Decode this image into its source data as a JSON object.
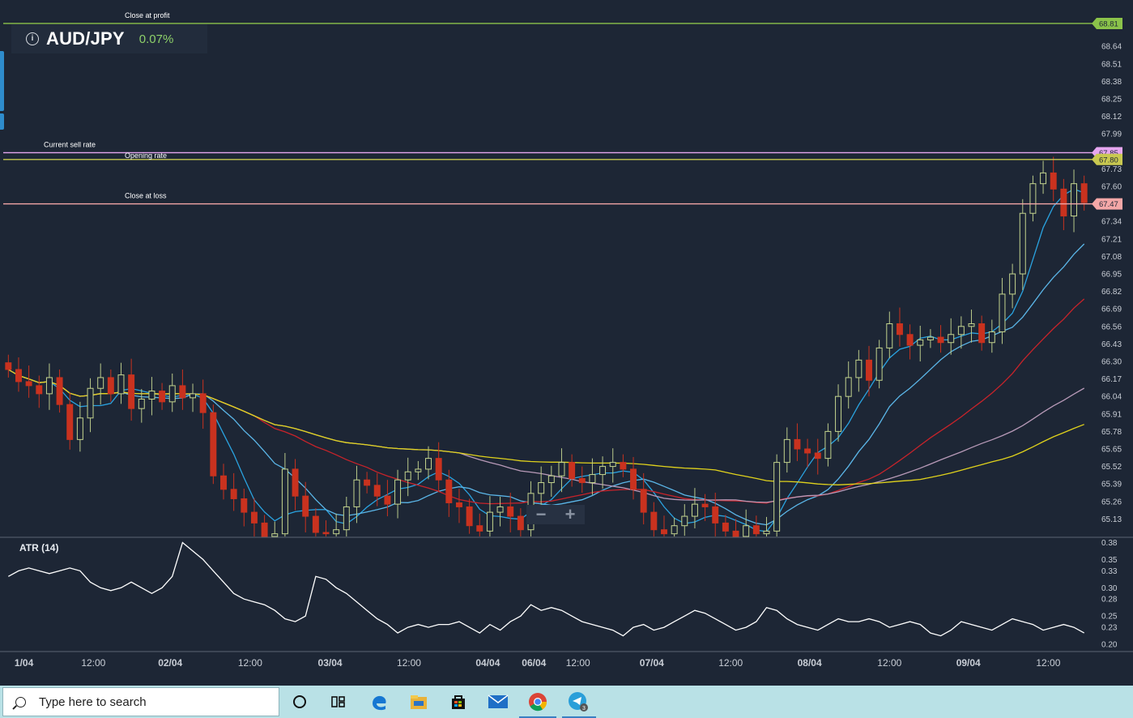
{
  "header": {
    "pair": "AUD/JPY",
    "change": "0.07%"
  },
  "lines": {
    "close_at_profit": {
      "label": "Close at profit",
      "value": 68.81,
      "tag": "68.81",
      "color": "#8bc34a"
    },
    "current_sell_rate": {
      "label": "Current sell rate",
      "value": 67.85,
      "tag": "67.85",
      "color": "#e6a6f0"
    },
    "opening_rate": {
      "label": "Opening rate",
      "value": 67.8,
      "tag": "67.80",
      "color": "#c8c850"
    },
    "close_at_loss": {
      "label": "Close at loss",
      "value": 67.47,
      "tag": "67.47",
      "color": "#f4a7a7"
    }
  },
  "indicator": {
    "label": "ATR (14)"
  },
  "zoom": {
    "minus": "−",
    "plus": "+"
  },
  "taskbar": {
    "search_placeholder": "Type here to search"
  },
  "chart_data": {
    "type": "candlestick",
    "price_axis": {
      "ticks": [
        "68.64",
        "68.51",
        "68.38",
        "68.25",
        "68.12",
        "67.99",
        "67.73",
        "67.60",
        "67.34",
        "67.21",
        "67.08",
        "66.95",
        "66.82",
        "66.69",
        "66.56",
        "66.43",
        "66.30",
        "66.17",
        "66.04",
        "65.91",
        "65.78",
        "65.65",
        "65.52",
        "65.39",
        "65.26",
        "65.13"
      ],
      "range": [
        65.0,
        68.9
      ]
    },
    "atr_axis": {
      "ticks": [
        "0.38",
        "0.35",
        "0.33",
        "0.30",
        "0.28",
        "0.25",
        "0.23",
        "0.20"
      ],
      "range": [
        0.19,
        0.385
      ]
    },
    "time_axis": {
      "labels": [
        "1/04",
        "12:00",
        "02/04",
        "12:00",
        "03/04",
        "12:00",
        "04/04",
        "06/04",
        "12:00",
        "07/04",
        "12:00",
        "08/04",
        "12:00",
        "09/04",
        "12:00"
      ],
      "bold": [
        true,
        false,
        true,
        false,
        true,
        false,
        true,
        true,
        false,
        true,
        false,
        true,
        false,
        true,
        false
      ],
      "positions": [
        0.6,
        8.3,
        15.8,
        23.6,
        31.4,
        39.1,
        46.8,
        51.3,
        55.6,
        62.8,
        70.5,
        78.2,
        86.0,
        93.7,
        101.5
      ]
    },
    "candle_count": 106,
    "closes": [
      66.24,
      66.15,
      66.12,
      66.06,
      66.18,
      65.98,
      65.72,
      65.88,
      66.1,
      66.18,
      66.06,
      66.2,
      65.95,
      66.02,
      66.08,
      66.0,
      66.12,
      66.03,
      66.06,
      65.92,
      65.45,
      65.35,
      65.28,
      65.18,
      65.1,
      65.0,
      65.02,
      65.5,
      65.3,
      65.15,
      65.03,
      65.02,
      65.05,
      65.22,
      65.42,
      65.38,
      65.3,
      65.24,
      65.42,
      65.48,
      65.5,
      65.58,
      65.42,
      65.25,
      65.22,
      65.08,
      65.04,
      65.18,
      65.22,
      65.15,
      65.05,
      65.32,
      65.4,
      65.45,
      65.55,
      65.43,
      65.4,
      65.46,
      65.52,
      65.55,
      65.5,
      65.35,
      65.18,
      65.05,
      65.02,
      65.08,
      65.15,
      65.24,
      65.22,
      65.1,
      65.04,
      65.0,
      65.08,
      65.02,
      65.04,
      65.55,
      65.72,
      65.65,
      65.62,
      65.58,
      65.78,
      66.04,
      66.18,
      66.31,
      66.16,
      66.4,
      66.58,
      66.5,
      66.42,
      66.46,
      66.48,
      66.44,
      66.5,
      66.56,
      66.58,
      66.44,
      66.52,
      66.8,
      66.95,
      67.4,
      67.62,
      67.7,
      67.58,
      67.38,
      67.62,
      67.48
    ],
    "atr_values": [
      0.32,
      0.33,
      0.335,
      0.33,
      0.325,
      0.33,
      0.335,
      0.33,
      0.31,
      0.3,
      0.295,
      0.3,
      0.31,
      0.3,
      0.29,
      0.3,
      0.32,
      0.38,
      0.365,
      0.35,
      0.33,
      0.31,
      0.29,
      0.28,
      0.275,
      0.27,
      0.26,
      0.245,
      0.24,
      0.25,
      0.32,
      0.315,
      0.3,
      0.29,
      0.275,
      0.26,
      0.245,
      0.235,
      0.22,
      0.23,
      0.235,
      0.23,
      0.235,
      0.235,
      0.24,
      0.23,
      0.22,
      0.235,
      0.225,
      0.24,
      0.25,
      0.27,
      0.26,
      0.265,
      0.26,
      0.25,
      0.24,
      0.235,
      0.23,
      0.225,
      0.215,
      0.23,
      0.235,
      0.225,
      0.23,
      0.24,
      0.25,
      0.26,
      0.255,
      0.245,
      0.235,
      0.225,
      0.23,
      0.24,
      0.265,
      0.26,
      0.245,
      0.235,
      0.23,
      0.225,
      0.235,
      0.245,
      0.24,
      0.24,
      0.245,
      0.24,
      0.23,
      0.235,
      0.24,
      0.235,
      0.22,
      0.215,
      0.225,
      0.24,
      0.235,
      0.23,
      0.225,
      0.235,
      0.245,
      0.24,
      0.235,
      0.225,
      0.23,
      0.235,
      0.23,
      0.22
    ]
  }
}
